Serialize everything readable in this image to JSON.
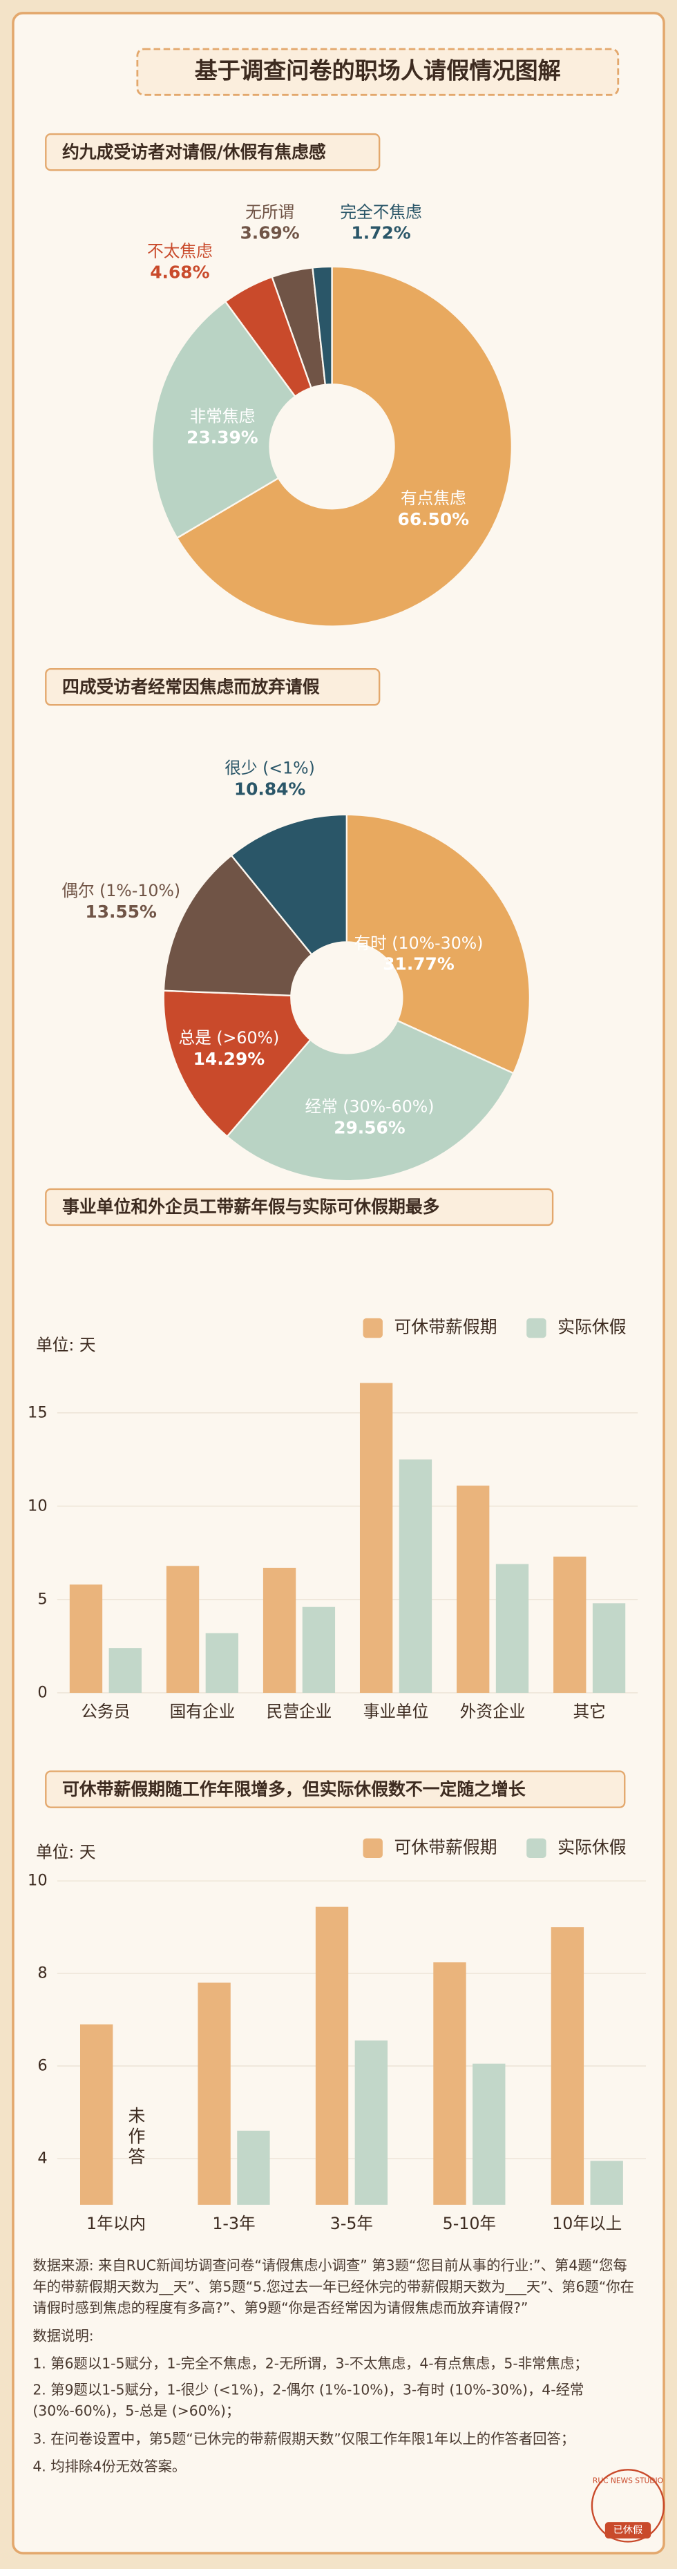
{
  "page_title": "基于调查问卷的职场人请假情况图解",
  "chart_data": [
    {
      "type": "donut",
      "title": "约九成受访者对请假/休假有焦虑感",
      "categories": [
        "有点焦虑",
        "非常焦虑",
        "不太焦虑",
        "无所谓",
        "完全不焦虑"
      ],
      "values": [
        66.5,
        23.39,
        4.68,
        3.69,
        1.72
      ],
      "value_labels": [
        "66.50%",
        "23.39%",
        "4.68%",
        "3.69%",
        "1.72%"
      ],
      "colors": [
        "#e8a95f",
        "#b9d3c4",
        "#c94a2b",
        "#705446",
        "#2a5668"
      ]
    },
    {
      "type": "donut",
      "title": "四成受访者经常因焦虑而放弃请假",
      "categories": [
        "有时 (10%-30%)",
        "经常 (30%-60%)",
        "总是 (>60%)",
        "偶尔 (1%-10%)",
        "很少 (<1%)"
      ],
      "values": [
        31.77,
        29.56,
        14.29,
        13.55,
        10.84
      ],
      "value_labels": [
        "31.77%",
        "29.56%",
        "14.29%",
        "13.55%",
        "10.84%"
      ],
      "colors": [
        "#e8a95f",
        "#b9d3c4",
        "#c94a2b",
        "#705446",
        "#2a5668"
      ]
    },
    {
      "type": "bar",
      "title": "事业单位和外企员工带薪年假与实际可休假期最多",
      "y_label": "单位: 天",
      "categories": [
        "公务员",
        "国有企业",
        "民营企业",
        "事业单位",
        "外资企业",
        "其它"
      ],
      "series": [
        {
          "name": "可休带薪假期",
          "color": "#eab47c",
          "values": [
            5.8,
            6.8,
            6.7,
            16.6,
            11.1,
            7.3
          ]
        },
        {
          "name": "实际休假",
          "color": "#c2d7c9",
          "values": [
            2.4,
            3.2,
            4.6,
            12.5,
            6.9,
            4.8
          ]
        }
      ],
      "ylim": [
        0,
        17
      ],
      "yticks": [
        0,
        5,
        10,
        15
      ],
      "grid": true
    },
    {
      "type": "bar",
      "title": "可休带薪假期随工作年限增多，但实际休假数不一定随之增长",
      "y_label": "单位: 天",
      "categories": [
        "1年以内",
        "1-3年",
        "3-5年",
        "5-10年",
        "10年以上"
      ],
      "series": [
        {
          "name": "可休带薪假期",
          "color": "#eab47c",
          "values": [
            6.9,
            7.8,
            9.44,
            8.24,
            9.0
          ]
        },
        {
          "name": "实际休假",
          "color": "#c2d7c9",
          "values": [
            null,
            4.6,
            6.55,
            6.05,
            3.95
          ]
        }
      ],
      "annotation": "未作答",
      "ylim": [
        3,
        10
      ],
      "yticks": [
        4,
        6,
        8,
        10
      ],
      "grid": true
    }
  ],
  "notes": {
    "source": "数据来源: 来自RUC新闻坊调查问卷“请假焦虑小调查” 第3题“您目前从事的行业:”、第4题“您每年的带薪假期天数为__天”、第5题“5.您过去一年已经休完的带薪假期天数为___天”、第6题“你在请假时感到焦虑的程度有多高?”、第9题“你是否经常因为请假焦虑而放弃请假?”",
    "heading": "数据说明:",
    "items": [
      "1. 第6题以1-5赋分，1-完全不焦虑，2-无所谓，3-不太焦虑，4-有点焦虑，5-非常焦虑；",
      "2. 第9题以1-5赋分，1-很少 (<1%)，2-偶尔 (1%-10%)，3-有时 (10%-30%)，4-经常 (30%-60%)，5-总是 (>60%)；",
      "3. 在问卷设置中，第5题“已休完的带薪假期天数”仅限工作年限1年以上的作答者回答；",
      "4. 均排除4份无效答案。"
    ]
  },
  "stamp": {
    "ring": "RUC NEWS STUDIO",
    "label": "已休假"
  }
}
